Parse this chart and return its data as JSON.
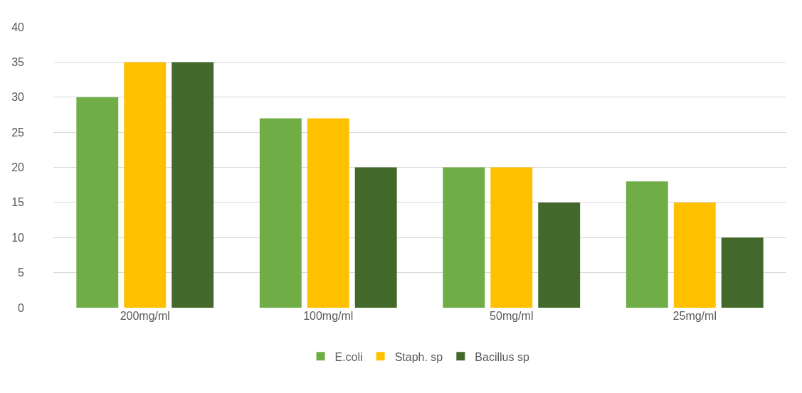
{
  "chart_data": {
    "type": "bar",
    "categories": [
      "200mg/ml",
      "100mg/ml",
      "50mg/ml",
      "25mg/ml"
    ],
    "series": [
      {
        "name": "E.coli",
        "color": "#70ad47",
        "values": [
          30,
          27,
          20,
          18
        ]
      },
      {
        "name": "Staph. sp",
        "color": "#ffc000",
        "values": [
          35,
          27,
          20,
          15
        ]
      },
      {
        "name": "Bacillus sp",
        "color": "#43682b",
        "values": [
          35,
          20,
          15,
          10
        ]
      }
    ],
    "ylim": [
      0,
      40
    ],
    "yticks": [
      0,
      5,
      10,
      15,
      20,
      25,
      30,
      35,
      40
    ],
    "grid": "y",
    "legend": "bottom"
  }
}
